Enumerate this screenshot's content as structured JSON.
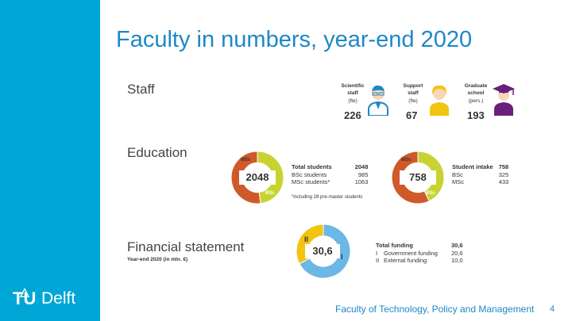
{
  "slide": {
    "title": "Faculty in numbers, year-end 2020",
    "footer": "Faculty of Technology, Policy and Management",
    "page_number": "4",
    "logo": {
      "tu": "TU",
      "delft": "Delft",
      "icon": "flame-icon"
    }
  },
  "staff": {
    "heading": "Staff",
    "columns": [
      {
        "label_line1": "Scientific",
        "label_line2": "staff",
        "unit": "(fte)",
        "value": "226",
        "icon": "scientist-icon"
      },
      {
        "label_line1": "Support",
        "label_line2": "staff",
        "unit": "(fte)",
        "value": "67",
        "icon": "support-staff-icon"
      },
      {
        "label_line1": "Graduate",
        "label_line2": "school",
        "unit": "(pers.)",
        "value": "193",
        "icon": "graduate-icon"
      }
    ]
  },
  "education": {
    "heading": "Education",
    "students": {
      "total": "2048",
      "seg_top": "MSc",
      "seg_bottom": "BSc",
      "rows": [
        {
          "label": "Total students",
          "value": "2048"
        },
        {
          "label": "BSc students",
          "value": "985"
        },
        {
          "label": "MSc students*",
          "value": "1063"
        }
      ],
      "footnote": "*including 28 pre-master students",
      "fractions": {
        "bsc": 0.481,
        "msc": 0.519
      }
    },
    "intake": {
      "total": "758",
      "seg_top": "MSc",
      "seg_bottom": "BSc",
      "rows": [
        {
          "label": "Student intake",
          "value": "758"
        },
        {
          "label": "BSc",
          "value": "325"
        },
        {
          "label": "MSc",
          "value": "433"
        }
      ],
      "fractions": {
        "bsc": 0.429,
        "msc": 0.571
      }
    }
  },
  "finance": {
    "heading": "Financial statement",
    "subheading": "Year-end 2020 (in mln. €)",
    "total": "30,6",
    "seg1_label": "I",
    "seg2_label": "II",
    "rows": [
      {
        "roman": "",
        "label": "Total funding",
        "value": "30,6"
      },
      {
        "roman": "I",
        "label": "Government funding",
        "value": "20,6"
      },
      {
        "roman": "II",
        "label": "External funding",
        "value": "10,0"
      }
    ],
    "fractions": {
      "gov": 0.673,
      "ext": 0.327
    }
  },
  "colors": {
    "sidebar": "#00a6d6",
    "title": "#1e88c7",
    "green": "#c8d331",
    "orange": "#d0592a",
    "blue": "#6bb7e6",
    "yellow": "#f2c40f",
    "purple": "#6a1f7a"
  }
}
